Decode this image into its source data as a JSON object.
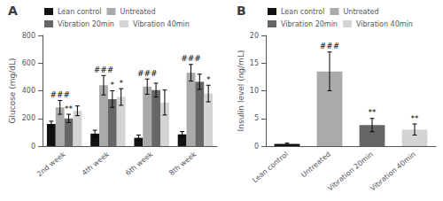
{
  "chart_data": [
    {
      "type": "bar",
      "title": "A",
      "ylabel": "Glucose (mg/dL)",
      "categories": [
        "2nd week",
        "4th week",
        "6th week",
        "8th week"
      ],
      "series": [
        {
          "name": "Lean control",
          "color": "#111111",
          "values": [
            160,
            90,
            60,
            85
          ],
          "errors": [
            20,
            25,
            20,
            20
          ]
        },
        {
          "name": "Untreated",
          "color": "#aaaaaa",
          "values": [
            280,
            440,
            430,
            530
          ],
          "errors": [
            50,
            70,
            55,
            60
          ],
          "annotations": [
            "###",
            "###",
            "###",
            "###"
          ]
        },
        {
          "name": "Vibration 20min",
          "color": "#666666",
          "values": [
            200,
            340,
            405,
            465
          ],
          "errors": [
            30,
            60,
            50,
            55
          ],
          "annotations": [
            "**",
            "*",
            null,
            null
          ]
        },
        {
          "name": "Vibration 40min",
          "color": "#d4d4d4",
          "values": [
            255,
            355,
            315,
            380
          ],
          "errors": [
            35,
            60,
            90,
            60
          ],
          "annotations": [
            null,
            "*",
            null,
            "*"
          ]
        }
      ],
      "ylim": [
        0,
        800
      ],
      "yticks": [
        0,
        200,
        400,
        600,
        800
      ],
      "grid": false,
      "legend": "upper left"
    },
    {
      "type": "bar",
      "title": "B",
      "ylabel": "Insulin level (ng/mL)",
      "categories": [
        "Lean control",
        "Untreated",
        "Vibration 20min",
        "Vibration 40min"
      ],
      "values": [
        0.4,
        13.5,
        3.8,
        3.0
      ],
      "colors": [
        "#111111",
        "#aaaaaa",
        "#666666",
        "#d4d4d4"
      ],
      "errors": [
        0.15,
        3.5,
        1.2,
        1.0
      ],
      "annotations": [
        null,
        "###",
        "**",
        "**"
      ],
      "ylim": [
        0,
        20
      ],
      "yticks": [
        0,
        5,
        10,
        15,
        20
      ],
      "grid": false,
      "legend": "upper left"
    }
  ]
}
